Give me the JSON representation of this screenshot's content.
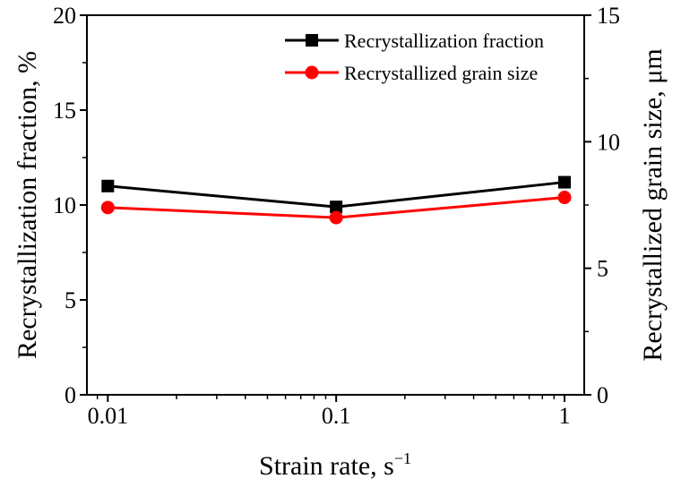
{
  "chart_data": {
    "type": "line",
    "xscale": "log",
    "x": [
      0.01,
      0.1,
      1
    ],
    "xlim": [
      0.0081,
      1.22
    ],
    "x_tick_labels": [
      "0.01",
      "0.1",
      "1"
    ],
    "xlabel": "Strain rate, s",
    "xlabel_sup": "−1",
    "ylabel_left": "Recrystallization fraction, %",
    "ylabel_right": "Recrystallized grain size, μm",
    "ylim_left": [
      0,
      20
    ],
    "ylim_right": [
      0,
      15
    ],
    "y_ticks_left": [
      "0",
      "5",
      "10",
      "15",
      "20"
    ],
    "y_ticks_right": [
      "0",
      "5",
      "10",
      "15"
    ],
    "legend_position": "top-right",
    "series": [
      {
        "name": "Recrystallization fraction",
        "axis": "left",
        "marker": "square",
        "color": "#000000",
        "values": [
          11.0,
          9.9,
          11.2
        ]
      },
      {
        "name": "Recrystallized grain size",
        "axis": "right",
        "marker": "circle",
        "color": "#ff0000",
        "values": [
          7.4,
          7.0,
          7.8
        ]
      }
    ]
  }
}
